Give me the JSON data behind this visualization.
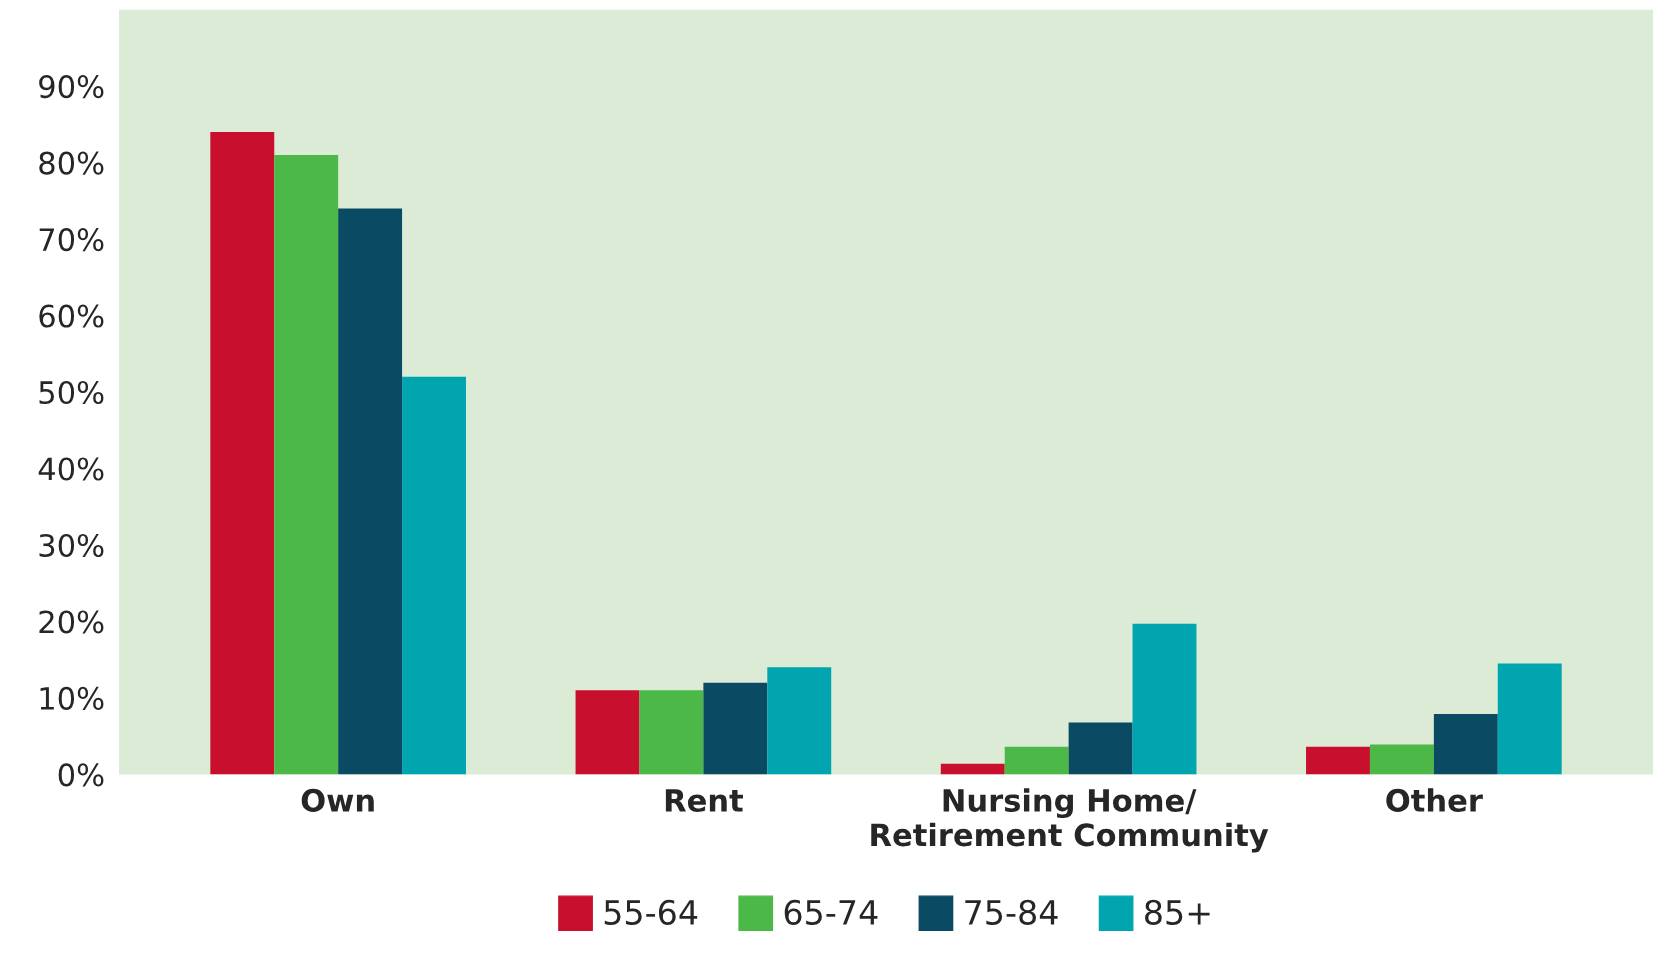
{
  "chart_data": {
    "type": "bar",
    "categories": [
      "Own",
      "Rent",
      "Nursing Home/\nRetirement Community",
      "Other"
    ],
    "series": [
      {
        "name": "55-64",
        "color": "#c8102e",
        "values": [
          84,
          11,
          1.4,
          3.6
        ]
      },
      {
        "name": "65-74",
        "color": "#4cb848",
        "values": [
          81,
          11,
          3.6,
          3.9
        ]
      },
      {
        "name": "75-84",
        "color": "#0a4a63",
        "values": [
          74,
          12,
          6.8,
          7.9
        ]
      },
      {
        "name": "85+",
        "color": "#00a5b0",
        "values": [
          52,
          14,
          19.7,
          14.5
        ]
      }
    ],
    "ylim": [
      0,
      100
    ],
    "yticks": [
      {
        "value": 0,
        "label": "0%"
      },
      {
        "value": 10,
        "label": "10%"
      },
      {
        "value": 20,
        "label": "20%"
      },
      {
        "value": 30,
        "label": "30%"
      },
      {
        "value": 40,
        "label": "40%"
      },
      {
        "value": 50,
        "label": "50%"
      },
      {
        "value": 60,
        "label": "60%"
      },
      {
        "value": 70,
        "label": "70%"
      },
      {
        "value": 80,
        "label": "80%"
      },
      {
        "value": 90,
        "label": "90%"
      }
    ],
    "grid": false,
    "legend": "bottom"
  }
}
